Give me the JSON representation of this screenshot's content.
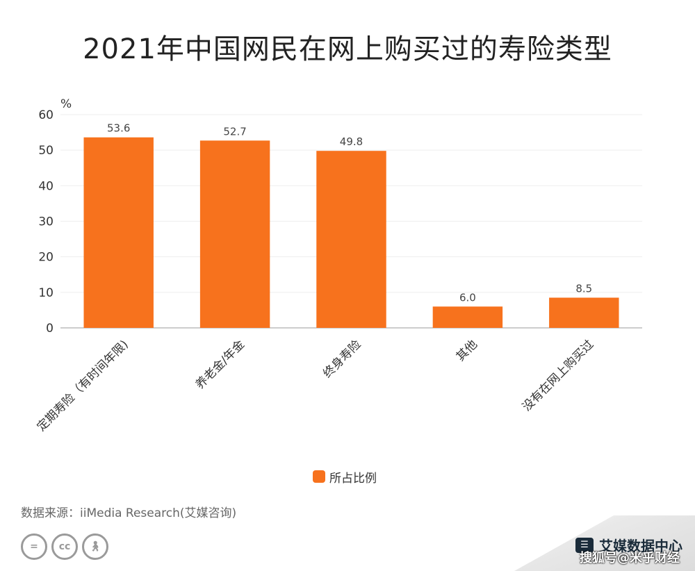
{
  "title": "2021年中国网民在网上购买过的寿险类型",
  "chart_data": {
    "type": "bar",
    "categories": [
      "定期寿险（有时间年限)",
      "养老金/年金",
      "终身寿险",
      "其他",
      "没有在网上购买过"
    ],
    "series": [
      {
        "name": "所占比例",
        "values": [
          53.6,
          52.7,
          49.8,
          6.0,
          8.5
        ],
        "color": "#f7721d"
      }
    ],
    "data_labels": [
      "53.6",
      "52.7",
      "49.8",
      "6.0",
      "8.5"
    ],
    "ylabel": "%",
    "ylim": [
      0,
      60
    ],
    "yticks": [
      0,
      10,
      20,
      30,
      40,
      50,
      60
    ],
    "grid": true,
    "legend_position": "bottom"
  },
  "source": "数据来源：iiMedia Research(艾媒咨询)",
  "license_icons": [
    "equal-icon",
    "cc-icon",
    "person-icon"
  ],
  "brand": "艾媒数据中心",
  "watermark": "搜狐号@米乎财经",
  "colors": {
    "bar": "#f7721d",
    "grid": "#eeeeee",
    "axis": "#999999"
  }
}
